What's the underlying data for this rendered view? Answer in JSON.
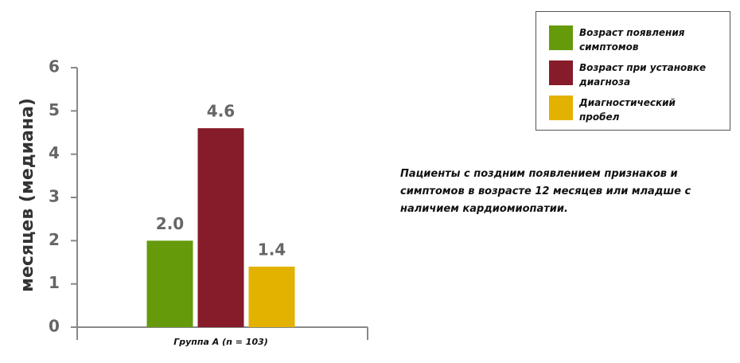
{
  "chart_data": {
    "type": "bar",
    "ylabel": "месяцев (медиана)",
    "categories": [
      "Группа A (n = 103)"
    ],
    "series": [
      {
        "name": "Возраст появления симптомов",
        "color": "#659a0b",
        "values": [
          2.0
        ],
        "value_labels": [
          "2.0"
        ]
      },
      {
        "name": "Возраст при установке диагноза",
        "color": "#861b2a",
        "values": [
          4.6
        ],
        "value_labels": [
          "4.6"
        ]
      },
      {
        "name": "Диагностический пробел",
        "color": "#e3b100",
        "values": [
          1.4
        ],
        "value_labels": [
          "1.4"
        ]
      }
    ],
    "ylim": [
      0,
      6
    ],
    "yticks": [
      0,
      1,
      2,
      3,
      4,
      5,
      6
    ],
    "annotation": "Пациенты с поздним появлением признаков и симптомов в возрасте 12 месяцев или младше с наличием кардиомиопатии.",
    "legend_position": "upper right"
  }
}
